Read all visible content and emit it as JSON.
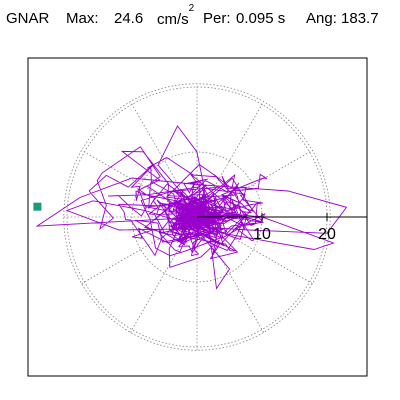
{
  "header": {
    "station": "GNAR",
    "max_label": "Max:",
    "max_value": "24.6",
    "max_unit_base": "cm/s",
    "max_unit_exp": "2",
    "per_label": "Per:",
    "per_value": "0.095 s",
    "ang_label": "Ang: 183.7"
  },
  "chart_data": {
    "type": "polar-hodogram",
    "title": "GNAR  Max: 24.6 cm/s²  Per: 0.095 s  Ang: 183.7",
    "max_amplitude": 24.6,
    "max_angle_deg": 183.7,
    "radial_ticks": [
      10,
      20
    ],
    "radial_tick_labels": [
      "10",
      "20"
    ],
    "grid": true,
    "colors": {
      "trace": "#9900cc",
      "grid": "#808080",
      "marker": "#1a9a7a",
      "axis": "#000000"
    }
  }
}
